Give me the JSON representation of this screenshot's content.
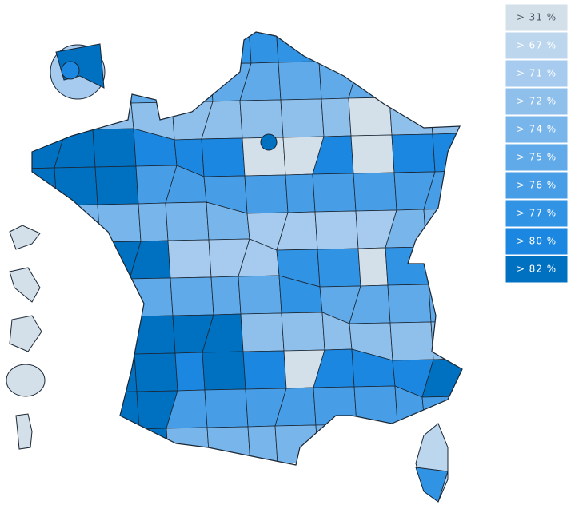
{
  "legend": [
    {
      "label": "> 31 %",
      "color": "#d3e0ea"
    },
    {
      "label": "> 67 %",
      "color": "#bcd6ee"
    },
    {
      "label": "> 71 %",
      "color": "#a6cbee"
    },
    {
      "label": "> 72 %",
      "color": "#8fc0ec"
    },
    {
      "label": "> 74 %",
      "color": "#78b5eb"
    },
    {
      "label": "> 75 %",
      "color": "#60aae9"
    },
    {
      "label": "> 76 %",
      "color": "#489ee6"
    },
    {
      "label": "> 77 %",
      "color": "#3193e4"
    },
    {
      "label": "> 80 %",
      "color": "#1b87e0"
    },
    {
      "label": "> 82 %",
      "color": "#0070c0"
    }
  ]
}
